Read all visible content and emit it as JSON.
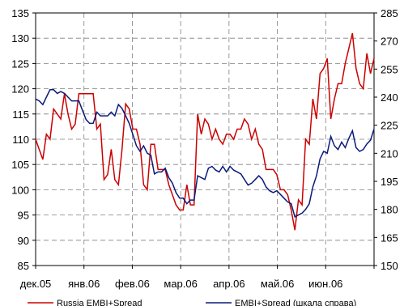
{
  "chart_data": {
    "type": "line",
    "title": "",
    "x_tick_labels": [
      "дек.05",
      "янв.06",
      "фев.06",
      "мар.06",
      "апр.06",
      "май.06",
      "июн.06"
    ],
    "left_axis": {
      "min": 85,
      "max": 135,
      "step": 5
    },
    "right_axis": {
      "min": 150,
      "max": 285,
      "step": 15
    },
    "grid": "dashed",
    "legend_position": "bottom",
    "series": [
      {
        "name": "Russia EMBI+Spread",
        "axis": "left",
        "color": "#cc0000",
        "values": [
          110,
          108,
          106,
          111,
          110,
          116,
          115,
          114,
          119,
          115,
          112,
          113,
          119,
          119,
          119,
          119,
          119,
          112,
          113,
          102,
          103,
          108,
          102,
          101,
          108,
          117,
          116,
          112,
          112,
          109,
          101,
          100,
          109,
          109,
          104,
          104,
          104,
          101,
          99,
          97,
          96,
          96,
          101,
          97,
          97,
          115,
          111,
          114,
          113,
          110,
          112,
          110,
          109,
          111,
          111,
          110,
          112,
          112,
          114,
          113,
          110,
          112,
          109,
          108,
          104,
          104,
          104,
          103,
          100,
          100,
          99,
          96,
          92,
          98,
          97,
          110,
          109,
          118,
          114,
          123,
          124,
          126,
          114,
          118,
          121,
          121,
          125,
          128,
          131,
          124,
          121,
          120,
          127,
          123,
          126
        ]
      },
      {
        "name": "EMBI+Spread (шкала справа)",
        "axis": "right",
        "color": "#0a1a7a",
        "values": [
          239,
          238,
          236,
          240,
          244,
          244,
          242,
          243,
          242,
          240,
          238,
          238,
          238,
          233,
          228,
          226,
          226,
          232,
          230,
          230,
          230,
          232,
          230,
          236,
          234,
          230,
          226,
          220,
          214,
          211,
          214,
          210,
          209,
          199,
          200,
          200,
          202,
          197,
          194,
          189,
          186,
          186,
          183,
          185,
          185,
          198,
          197,
          196,
          202,
          203,
          201,
          200,
          203,
          200,
          203,
          201,
          200,
          199,
          196,
          193,
          194,
          196,
          198,
          196,
          192,
          190,
          189,
          190,
          188,
          186,
          184,
          183,
          176,
          177,
          178,
          180,
          183,
          192,
          198,
          207,
          211,
          210,
          219,
          214,
          212,
          216,
          213,
          218,
          222,
          213,
          211,
          212,
          215,
          217,
          223
        ]
      }
    ]
  }
}
